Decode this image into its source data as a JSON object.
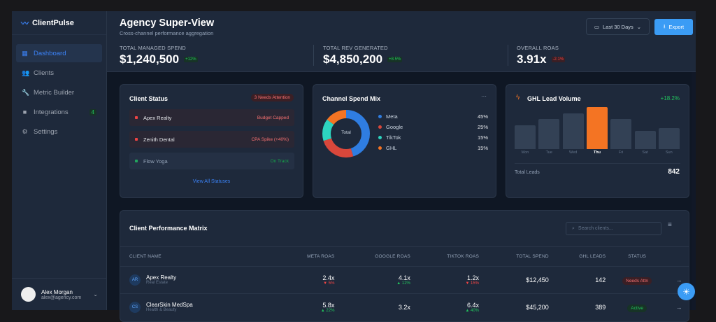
{
  "app": {
    "brand": "ClientPulse"
  },
  "sidebar": {
    "items": [
      {
        "label": "Dashboard",
        "icon": "dashboard-icon",
        "active": true
      },
      {
        "label": "Clients",
        "icon": "users-icon"
      },
      {
        "label": "Metric Builder",
        "icon": "wrench-icon"
      },
      {
        "label": "Integrations",
        "icon": "plug-icon",
        "badge": "4"
      },
      {
        "label": "Settings",
        "icon": "gear-icon"
      }
    ],
    "user": {
      "name": "Alex Morgan",
      "email": "alex@agency.com"
    }
  },
  "header": {
    "title": "Agency Super-View",
    "subtitle": "Cross-channel performance aggregation",
    "date_range": "Last 30 Days",
    "export_label": "Export"
  },
  "kpis": [
    {
      "label": "TOTAL MANAGED SPEND",
      "value": "$1,240,500",
      "change": "+12%",
      "trend": "up"
    },
    {
      "label": "TOTAL REV GENERATED",
      "value": "$4,850,200",
      "change": "+8.5%",
      "trend": "up"
    },
    {
      "label": "OVERALL ROAS",
      "value": "3.91x",
      "change": "-2.1%",
      "trend": "down"
    }
  ],
  "client_status": {
    "title": "Client Status",
    "badge": "3 Needs Attention",
    "rows": [
      {
        "name": "Apex Realty",
        "status": "Budget Capped",
        "level": "alert"
      },
      {
        "name": "Zenith Dental",
        "status": "CPA Spike (+40%)",
        "level": "alert"
      },
      {
        "name": "Flow Yoga",
        "status": "On Track",
        "level": "ok"
      }
    ],
    "link": "View All Statuses"
  },
  "channel_mix": {
    "title": "Channel Spend Mix",
    "menu": "···",
    "center_label": "Total",
    "items": [
      {
        "name": "Meta",
        "pct": "45%",
        "value": 45,
        "color": "#2f7de1"
      },
      {
        "name": "Google",
        "pct": "25%",
        "value": 25,
        "color": "#d9473b"
      },
      {
        "name": "TikTok",
        "pct": "15%",
        "value": 15,
        "color": "#2dd4bf"
      },
      {
        "name": "GHL",
        "pct": "15%",
        "value": 15,
        "color": "#f47423"
      }
    ]
  },
  "lead_volume": {
    "title": "GHL Lead Volume",
    "change": "+18.2%",
    "days": [
      "Mon",
      "Tue",
      "Wed",
      "Thu",
      "Fri",
      "Sat",
      "Sun"
    ],
    "relative_levels": [
      0.57,
      0.72,
      0.85,
      1,
      0.72,
      0.43,
      0.5
    ],
    "highlight": "Thu",
    "total_label": "Total Leads",
    "total": "842"
  },
  "matrix": {
    "title": "Client Performance Matrix",
    "search_placeholder": "Search clients...",
    "columns": [
      "CLIENT NAME",
      "META ROAS",
      "GOOGLE ROAS",
      "TIKTOK ROAS",
      "TOTAL SPEND",
      "GHL LEADS",
      "STATUS"
    ],
    "rows": [
      {
        "initials": "AR",
        "name": "Apex Realty",
        "industry": "Real Estate",
        "meta": "2.4x",
        "meta_chg": "▼ 5%",
        "meta_up": false,
        "google": "4.1x",
        "google_chg": "▲ 12%",
        "google_up": true,
        "tiktok": "1.2x",
        "tiktok_chg": "▼ 15%",
        "tiktok_up": false,
        "spend": "$12,450",
        "leads": "142",
        "status": "Needs Attn"
      },
      {
        "initials": "CS",
        "name": "ClearSkin MedSpa",
        "industry": "Health & Beauty",
        "meta": "5.8x",
        "meta_chg": "▲ 22%",
        "meta_up": true,
        "google": "3.2x",
        "google_chg": "",
        "google_up": true,
        "tiktok": "6.4x",
        "tiktok_chg": "▲ 40%",
        "tiktok_up": true,
        "spend": "$45,200",
        "leads": "389",
        "status": "Active"
      }
    ]
  }
}
